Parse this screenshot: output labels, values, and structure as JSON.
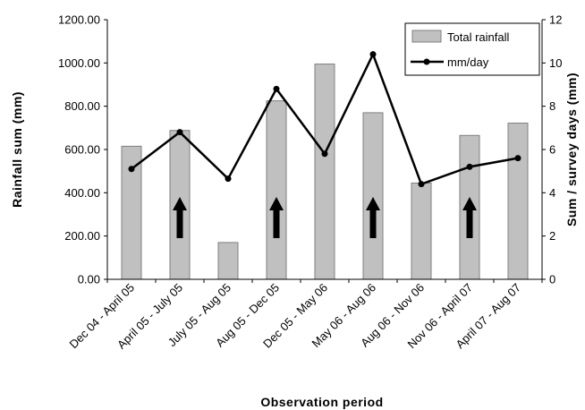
{
  "chart_data": {
    "type": "bar",
    "categories": [
      "Dec 04 - April 05",
      "April 05 - July 05",
      "July 05 - Aug 05",
      "Aug 05 - Dec 05",
      "Dec 05 - May 06",
      "May 06 - Aug 06",
      "Aug 06 - Nov 06",
      "Nov 06 - April 07",
      "April 07 - Aug 07"
    ],
    "series": [
      {
        "name": "Total rainfall",
        "kind": "bar",
        "axis": "left",
        "values": [
          615,
          688,
          170,
          825,
          995,
          770,
          445,
          665,
          722
        ]
      },
      {
        "name": "mm/day",
        "kind": "line",
        "axis": "right",
        "values": [
          5.1,
          6.8,
          4.65,
          8.8,
          5.8,
          10.4,
          4.4,
          5.2,
          5.6
        ]
      }
    ],
    "arrows_at": [
      1,
      3,
      5,
      7
    ],
    "xlabel": "Observation period",
    "ylabel": "Rainfall sum (mm)",
    "y2label": "Sum / survey days (mm)",
    "ylim": [
      0,
      1200
    ],
    "y2lim": [
      0,
      12
    ],
    "yticks": [
      "0.00",
      "200.00",
      "400.00",
      "600.00",
      "800.00",
      "1000.00",
      "1200.00"
    ],
    "y2ticks": [
      "0",
      "2",
      "4",
      "6",
      "8",
      "10",
      "12"
    ],
    "legend_position": "top-right",
    "grid": false,
    "colors": {
      "bar_fill": "#c0c0c0",
      "bar_stroke": "#7f7f7f",
      "line": "#000000"
    }
  }
}
